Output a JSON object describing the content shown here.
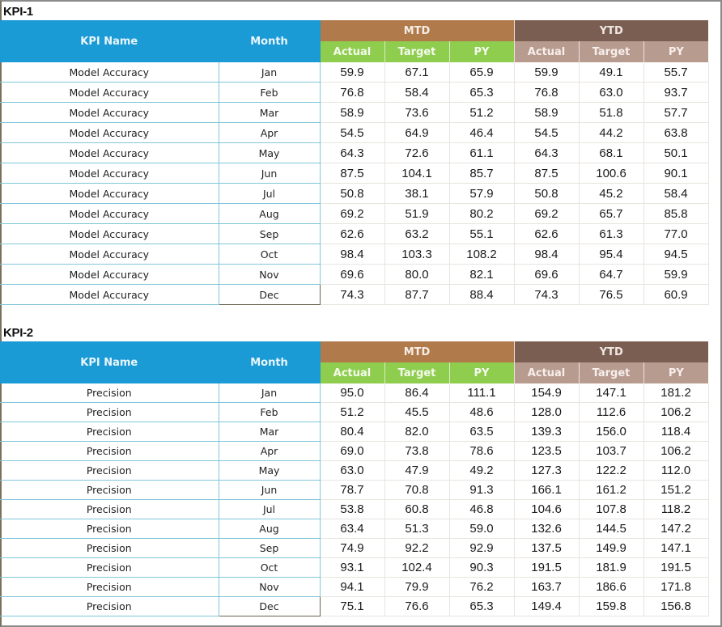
{
  "colors": {
    "header_blue": "#1a9bd5",
    "mtd_brown": "#b07a4a",
    "ytd_brown": "#7a5e52",
    "mtd_sub_green": "#8fcd4f",
    "ytd_sub_tan": "#b89b8f",
    "row_border": "#7fc6d8"
  },
  "headers": {
    "kpi_name": "KPI Name",
    "month": "Month",
    "mtd": "MTD",
    "ytd": "YTD",
    "actual": "Actual",
    "target": "Target",
    "py": "PY"
  },
  "kpi1": {
    "title": "KPI-1",
    "rows": [
      {
        "name": "Model Accuracy",
        "month": "Jan",
        "mtd_actual": "59.9",
        "mtd_target": "67.1",
        "mtd_py": "65.9",
        "ytd_actual": "59.9",
        "ytd_target": "49.1",
        "ytd_py": "55.7"
      },
      {
        "name": "Model Accuracy",
        "month": "Feb",
        "mtd_actual": "76.8",
        "mtd_target": "58.4",
        "mtd_py": "65.3",
        "ytd_actual": "76.8",
        "ytd_target": "63.0",
        "ytd_py": "93.7"
      },
      {
        "name": "Model Accuracy",
        "month": "Mar",
        "mtd_actual": "58.9",
        "mtd_target": "73.6",
        "mtd_py": "51.2",
        "ytd_actual": "58.9",
        "ytd_target": "51.8",
        "ytd_py": "57.7"
      },
      {
        "name": "Model Accuracy",
        "month": "Apr",
        "mtd_actual": "54.5",
        "mtd_target": "64.9",
        "mtd_py": "46.4",
        "ytd_actual": "54.5",
        "ytd_target": "44.2",
        "ytd_py": "63.8"
      },
      {
        "name": "Model Accuracy",
        "month": "May",
        "mtd_actual": "64.3",
        "mtd_target": "72.6",
        "mtd_py": "61.1",
        "ytd_actual": "64.3",
        "ytd_target": "68.1",
        "ytd_py": "50.1"
      },
      {
        "name": "Model Accuracy",
        "month": "Jun",
        "mtd_actual": "87.5",
        "mtd_target": "104.1",
        "mtd_py": "85.7",
        "ytd_actual": "87.5",
        "ytd_target": "100.6",
        "ytd_py": "90.1"
      },
      {
        "name": "Model Accuracy",
        "month": "Jul",
        "mtd_actual": "50.8",
        "mtd_target": "38.1",
        "mtd_py": "57.9",
        "ytd_actual": "50.8",
        "ytd_target": "45.2",
        "ytd_py": "58.4"
      },
      {
        "name": "Model Accuracy",
        "month": "Aug",
        "mtd_actual": "69.2",
        "mtd_target": "51.9",
        "mtd_py": "80.2",
        "ytd_actual": "69.2",
        "ytd_target": "65.7",
        "ytd_py": "85.8"
      },
      {
        "name": "Model Accuracy",
        "month": "Sep",
        "mtd_actual": "62.6",
        "mtd_target": "63.2",
        "mtd_py": "55.1",
        "ytd_actual": "62.6",
        "ytd_target": "61.3",
        "ytd_py": "77.0"
      },
      {
        "name": "Model Accuracy",
        "month": "Oct",
        "mtd_actual": "98.4",
        "mtd_target": "103.3",
        "mtd_py": "108.2",
        "ytd_actual": "98.4",
        "ytd_target": "95.4",
        "ytd_py": "94.5"
      },
      {
        "name": "Model Accuracy",
        "month": "Nov",
        "mtd_actual": "69.6",
        "mtd_target": "80.0",
        "mtd_py": "82.1",
        "ytd_actual": "69.6",
        "ytd_target": "64.7",
        "ytd_py": "59.9"
      },
      {
        "name": "Model Accuracy",
        "month": "Dec",
        "mtd_actual": "74.3",
        "mtd_target": "87.7",
        "mtd_py": "88.4",
        "ytd_actual": "74.3",
        "ytd_target": "76.5",
        "ytd_py": "60.9"
      }
    ]
  },
  "kpi2": {
    "title": "KPI-2",
    "rows": [
      {
        "name": "Precision",
        "month": "Jan",
        "mtd_actual": "95.0",
        "mtd_target": "86.4",
        "mtd_py": "111.1",
        "ytd_actual": "154.9",
        "ytd_target": "147.1",
        "ytd_py": "181.2"
      },
      {
        "name": "Precision",
        "month": "Feb",
        "mtd_actual": "51.2",
        "mtd_target": "45.5",
        "mtd_py": "48.6",
        "ytd_actual": "128.0",
        "ytd_target": "112.6",
        "ytd_py": "106.2"
      },
      {
        "name": "Precision",
        "month": "Mar",
        "mtd_actual": "80.4",
        "mtd_target": "82.0",
        "mtd_py": "63.5",
        "ytd_actual": "139.3",
        "ytd_target": "156.0",
        "ytd_py": "118.4"
      },
      {
        "name": "Precision",
        "month": "Apr",
        "mtd_actual": "69.0",
        "mtd_target": "73.8",
        "mtd_py": "78.6",
        "ytd_actual": "123.5",
        "ytd_target": "103.7",
        "ytd_py": "106.2"
      },
      {
        "name": "Precision",
        "month": "May",
        "mtd_actual": "63.0",
        "mtd_target": "47.9",
        "mtd_py": "49.2",
        "ytd_actual": "127.3",
        "ytd_target": "122.2",
        "ytd_py": "112.0"
      },
      {
        "name": "Precision",
        "month": "Jun",
        "mtd_actual": "78.7",
        "mtd_target": "70.8",
        "mtd_py": "91.3",
        "ytd_actual": "166.1",
        "ytd_target": "161.2",
        "ytd_py": "151.2"
      },
      {
        "name": "Precision",
        "month": "Jul",
        "mtd_actual": "53.8",
        "mtd_target": "60.8",
        "mtd_py": "46.8",
        "ytd_actual": "104.6",
        "ytd_target": "107.8",
        "ytd_py": "118.2"
      },
      {
        "name": "Precision",
        "month": "Aug",
        "mtd_actual": "63.4",
        "mtd_target": "51.3",
        "mtd_py": "59.0",
        "ytd_actual": "132.6",
        "ytd_target": "144.5",
        "ytd_py": "147.2"
      },
      {
        "name": "Precision",
        "month": "Sep",
        "mtd_actual": "74.9",
        "mtd_target": "92.2",
        "mtd_py": "92.9",
        "ytd_actual": "137.5",
        "ytd_target": "149.9",
        "ytd_py": "147.1"
      },
      {
        "name": "Precision",
        "month": "Oct",
        "mtd_actual": "93.1",
        "mtd_target": "102.4",
        "mtd_py": "90.3",
        "ytd_actual": "191.5",
        "ytd_target": "181.9",
        "ytd_py": "191.5"
      },
      {
        "name": "Precision",
        "month": "Nov",
        "mtd_actual": "94.1",
        "mtd_target": "79.9",
        "mtd_py": "76.2",
        "ytd_actual": "163.7",
        "ytd_target": "186.6",
        "ytd_py": "171.8"
      },
      {
        "name": "Precision",
        "month": "Dec",
        "mtd_actual": "75.1",
        "mtd_target": "76.6",
        "mtd_py": "65.3",
        "ytd_actual": "149.4",
        "ytd_target": "159.8",
        "ytd_py": "156.8"
      }
    ]
  }
}
